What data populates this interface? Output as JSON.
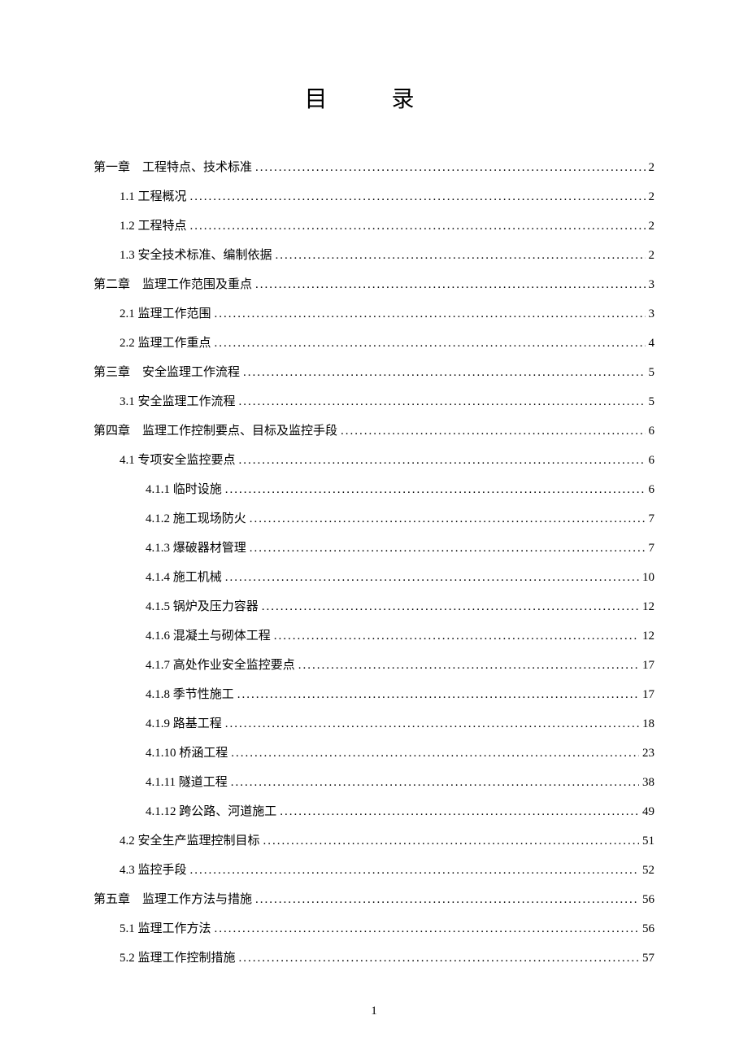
{
  "title": "目  录",
  "page_number": "1",
  "entries": [
    {
      "label": "第一章　工程特点、技术标准",
      "page": "2",
      "indent": 0
    },
    {
      "label": "1.1 工程概况",
      "page": "2",
      "indent": 1
    },
    {
      "label": "1.2 工程特点",
      "page": "2",
      "indent": 1
    },
    {
      "label": "1.3 安全技术标准、编制依据",
      "page": "2",
      "indent": 1
    },
    {
      "label": "第二章　监理工作范围及重点",
      "page": "3",
      "indent": 0
    },
    {
      "label": "2.1 监理工作范围",
      "page": "3",
      "indent": 1
    },
    {
      "label": "2.2 监理工作重点",
      "page": "4",
      "indent": 1
    },
    {
      "label": "第三章　安全监理工作流程",
      "page": "5",
      "indent": 0
    },
    {
      "label": "3.1 安全监理工作流程",
      "page": "5",
      "indent": 1
    },
    {
      "label": "第四章　监理工作控制要点、目标及监控手段",
      "page": "6",
      "indent": 0
    },
    {
      "label": "4.1 专项安全监控要点",
      "page": "6",
      "indent": 2
    },
    {
      "label": "4.1.1 临时设施",
      "page": "6",
      "indent": 3
    },
    {
      "label": "4.1.2 施工现场防火",
      "page": "7",
      "indent": 3
    },
    {
      "label": "4.1.3 爆破器材管理",
      "page": "7",
      "indent": 3
    },
    {
      "label": "4.1.4 施工机械",
      "page": "10",
      "indent": 3
    },
    {
      "label": "4.1.5 锅炉及压力容器",
      "page": "12",
      "indent": 3
    },
    {
      "label": "4.1.6 混凝土与砌体工程",
      "page": "12",
      "indent": 3
    },
    {
      "label": "4.1.7 高处作业安全监控要点",
      "page": "17",
      "indent": 3
    },
    {
      "label": "4.1.8 季节性施工",
      "page": "17",
      "indent": 3
    },
    {
      "label": "4.1.9 路基工程",
      "page": "18",
      "indent": 3
    },
    {
      "label": "4.1.10 桥涵工程",
      "page": "23",
      "indent": 3
    },
    {
      "label": "4.1.11 隧道工程",
      "page": "38",
      "indent": 3
    },
    {
      "label": "4.1.12 跨公路、河道施工",
      "page": "49",
      "indent": 3
    },
    {
      "label": "4.2 安全生产监理控制目标",
      "page": "51",
      "indent": 2
    },
    {
      "label": "4.3 监控手段",
      "page": "52",
      "indent": 2
    },
    {
      "label": "第五章　监理工作方法与措施",
      "page": "56",
      "indent": 0
    },
    {
      "label": "5.1 监理工作方法",
      "page": "56",
      "indent": 1
    },
    {
      "label": "5.2 监理工作控制措施",
      "page": "57",
      "indent": 1
    }
  ]
}
